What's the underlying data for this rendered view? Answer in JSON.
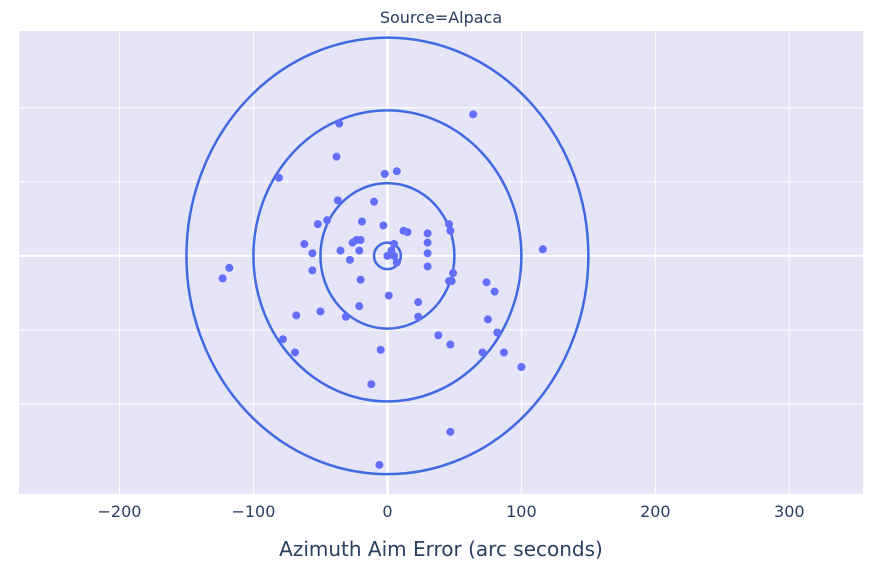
{
  "chart_data": {
    "type": "scatter",
    "title": "Source=Alpaca",
    "xlabel": "Azimuth Aim Error (arc seconds)",
    "ylabel": "",
    "xlim": [
      -275,
      355
    ],
    "ylim": [
      -180,
      170
    ],
    "x_ticks": [
      -200,
      -100,
      0,
      100,
      200,
      300
    ],
    "x_tick_labels": [
      "−200",
      "−100",
      "0",
      "100",
      "200",
      "300"
    ],
    "y_ticks": [
      -112,
      -56,
      0,
      56,
      112
    ],
    "grid": true,
    "legend": "none",
    "colors": {
      "plot_bg": "#e5e5f7",
      "grid": "#ffffff",
      "marker": "#636efa",
      "ring": "#4169e1",
      "text": "#2a3f5f"
    },
    "rings": [
      {
        "rx": 10,
        "ry": 10
      },
      {
        "rx": 50,
        "ry": 55
      },
      {
        "rx": 100,
        "ry": 110
      },
      {
        "rx": 150,
        "ry": 165
      }
    ],
    "series": [
      {
        "points": [
          {
            "x": 64,
            "y": 107
          },
          {
            "x": -36,
            "y": 100
          },
          {
            "x": -38,
            "y": 75
          },
          {
            "x": 7,
            "y": 64
          },
          {
            "x": -2,
            "y": 62
          },
          {
            "x": -81,
            "y": 59
          },
          {
            "x": -37,
            "y": 42
          },
          {
            "x": -10,
            "y": 41
          },
          {
            "x": -19,
            "y": 26
          },
          {
            "x": -45,
            "y": 27
          },
          {
            "x": -52,
            "y": 24
          },
          {
            "x": -3,
            "y": 23
          },
          {
            "x": 46,
            "y": 24
          },
          {
            "x": 12,
            "y": 19
          },
          {
            "x": 15,
            "y": 18
          },
          {
            "x": 47,
            "y": 19
          },
          {
            "x": 30,
            "y": 17
          },
          {
            "x": -23,
            "y": 12
          },
          {
            "x": -20,
            "y": 12
          },
          {
            "x": -26,
            "y": 10
          },
          {
            "x": -62,
            "y": 9
          },
          {
            "x": 30,
            "y": 10
          },
          {
            "x": 5,
            "y": 9
          },
          {
            "x": -35,
            "y": 4
          },
          {
            "x": -21,
            "y": 4
          },
          {
            "x": 116,
            "y": 5
          },
          {
            "x": -56,
            "y": 2
          },
          {
            "x": 30,
            "y": 2
          },
          {
            "x": 3,
            "y": 4
          },
          {
            "x": 0,
            "y": 0
          },
          {
            "x": 5,
            "y": 0
          },
          {
            "x": -28,
            "y": -3
          },
          {
            "x": 7,
            "y": -5
          },
          {
            "x": -118,
            "y": -9
          },
          {
            "x": 30,
            "y": -8
          },
          {
            "x": -56,
            "y": -11
          },
          {
            "x": 49,
            "y": -13
          },
          {
            "x": -123,
            "y": -17
          },
          {
            "x": -20,
            "y": -18
          },
          {
            "x": 46,
            "y": -19
          },
          {
            "x": 48,
            "y": -19
          },
          {
            "x": 74,
            "y": -20
          },
          {
            "x": 80,
            "y": -27
          },
          {
            "x": 1,
            "y": -30
          },
          {
            "x": 23,
            "y": -35
          },
          {
            "x": -21,
            "y": -38
          },
          {
            "x": -50,
            "y": -42
          },
          {
            "x": -68,
            "y": -45
          },
          {
            "x": -31,
            "y": -46
          },
          {
            "x": 23,
            "y": -46
          },
          {
            "x": 75,
            "y": -48
          },
          {
            "x": 38,
            "y": -60
          },
          {
            "x": 82,
            "y": -58
          },
          {
            "x": -78,
            "y": -63
          },
          {
            "x": 47,
            "y": -67
          },
          {
            "x": -5,
            "y": -71
          },
          {
            "x": -69,
            "y": -73
          },
          {
            "x": 71,
            "y": -73
          },
          {
            "x": 87,
            "y": -73
          },
          {
            "x": 100,
            "y": -84
          },
          {
            "x": -12,
            "y": -97
          },
          {
            "x": 47,
            "y": -133
          },
          {
            "x": -6,
            "y": -158
          }
        ]
      }
    ]
  }
}
